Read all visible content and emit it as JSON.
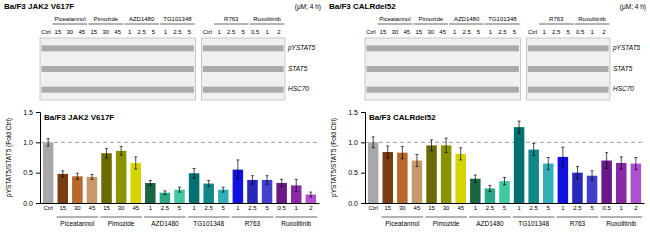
{
  "chart_data": [
    {
      "type": "blot",
      "title": "Ba/F3 JAK2 V617F",
      "annotations": [
        "(μM; 4 h)"
      ],
      "rows": [
        "pYSTAT5",
        "STAT5",
        "HSC70"
      ],
      "blocks": [
        {
          "lanes": [
            "Ctrl"
          ],
          "groups": [
            {
              "name": "Piceatannol",
              "lanes": [
                "15",
                "30",
                "45"
              ]
            },
            {
              "name": "Pimozide",
              "lanes": [
                "15",
                "30",
                "45"
              ]
            },
            {
              "name": "AZD1480",
              "lanes": [
                "1",
                "2.5",
                "5"
              ]
            },
            {
              "name": "TG101348",
              "lanes": [
                "1",
                "2.5",
                "5"
              ]
            }
          ]
        },
        {
          "lanes": [
            "Ctrl"
          ],
          "groups": [
            {
              "name": "R763",
              "lanes": [
                "1",
                "2.5",
                "5"
              ]
            },
            {
              "name": "Ruxolitinib",
              "lanes": [
                "0.5",
                "1",
                "2"
              ]
            }
          ]
        }
      ]
    },
    {
      "type": "bar",
      "title": "Ba/F3 JAK2 V617F",
      "ylabel": "pYSTAT5/STAT5 (Fold Ctrl)",
      "categories": [
        "Ctrl",
        "15",
        "30",
        "45",
        "15",
        "30",
        "45",
        "1",
        "2.5",
        "5",
        "1",
        "2.5",
        "5",
        "1",
        "2.5",
        "5",
        "0.5",
        "1",
        "2"
      ],
      "values": [
        1.0,
        0.48,
        0.44,
        0.43,
        0.82,
        0.86,
        0.66,
        0.33,
        0.17,
        0.22,
        0.49,
        0.32,
        0.22,
        0.55,
        0.38,
        0.38,
        0.33,
        0.29,
        0.14
      ],
      "errors": [
        0.06,
        0.05,
        0.05,
        0.04,
        0.08,
        0.07,
        0.1,
        0.04,
        0.03,
        0.04,
        0.08,
        0.05,
        0.04,
        0.16,
        0.07,
        0.07,
        0.06,
        0.1,
        0.04
      ],
      "colors": [
        "#a8a8a8",
        "#7a3b0e",
        "#b8682a",
        "#c8986a",
        "#6b6b00",
        "#8a9400",
        "#d4d400",
        "#1a6644",
        "#2aa888",
        "#40c8a0",
        "#007070",
        "#108888",
        "#30b0b8",
        "#1010e0",
        "#2828b8",
        "#4040cc",
        "#6a1888",
        "#8a28a8",
        "#b050d0"
      ],
      "ylim": [
        0.0,
        1.5
      ],
      "yticks": [
        {
          "value": 0.0,
          "label": "0.0"
        },
        0.5,
        {
          "value": 1.0,
          "label": "1.0"
        },
        1.5
      ],
      "reference_line": 1.0,
      "groups": [
        {
          "name": "Piceatannol",
          "from": 1,
          "to": 3
        },
        {
          "name": "Pimozide",
          "from": 4,
          "to": 6
        },
        {
          "name": "AZD1480",
          "from": 7,
          "to": 9
        },
        {
          "name": "TG101348",
          "from": 10,
          "to": 12
        },
        {
          "name": "R763",
          "from": 13,
          "to": 15
        },
        {
          "name": "Ruxolitinib",
          "from": 16,
          "to": 18
        }
      ],
      "grid": false
    },
    {
      "type": "blot",
      "title": "Ba/F3 CALRdel52",
      "annotations": [
        "(μM; 4 h)"
      ],
      "rows": [
        "pYSTAT5",
        "STAT5",
        "HSC70"
      ],
      "blocks": [
        {
          "lanes": [
            "Ctrl"
          ],
          "groups": [
            {
              "name": "Piceatannol",
              "lanes": [
                "15",
                "30",
                "45"
              ]
            },
            {
              "name": "Pimozide",
              "lanes": [
                "15",
                "30",
                "45"
              ]
            },
            {
              "name": "AZD1480",
              "lanes": [
                "1",
                "2.5",
                "5"
              ]
            },
            {
              "name": "TG101348",
              "lanes": [
                "1",
                "2.5",
                "5"
              ]
            }
          ]
        },
        {
          "lanes": [
            "Ctrl"
          ],
          "groups": [
            {
              "name": "R763",
              "lanes": [
                "1",
                "2.5",
                "5"
              ]
            },
            {
              "name": "Ruxolitinib",
              "lanes": [
                "0.5",
                "1",
                "2"
              ]
            }
          ]
        }
      ]
    },
    {
      "type": "bar",
      "title": "Ba/F3 CALRdel52",
      "ylabel": "pYSTAT5/STAT5 (Fold Ctrl)",
      "categories": [
        "Ctrl",
        "15",
        "30",
        "45",
        "15",
        "30",
        "45",
        "1",
        "2.5",
        "5",
        "1",
        "2.5",
        "5",
        "1",
        "2.5",
        "5",
        "0.5",
        "1",
        "2"
      ],
      "values": [
        1.0,
        0.84,
        0.83,
        0.7,
        0.95,
        0.95,
        0.81,
        0.4,
        0.24,
        0.36,
        1.25,
        0.88,
        0.65,
        0.76,
        0.5,
        0.45,
        0.7,
        0.66,
        0.65
      ],
      "errors": [
        0.09,
        0.1,
        0.1,
        0.1,
        0.09,
        0.12,
        0.1,
        0.06,
        0.05,
        0.06,
        0.1,
        0.1,
        0.1,
        0.16,
        0.1,
        0.08,
        0.13,
        0.1,
        0.1
      ],
      "colors": [
        "#a8a8a8",
        "#7a3b0e",
        "#b8682a",
        "#c8986a",
        "#6b6b00",
        "#8a9400",
        "#d4d400",
        "#1a6644",
        "#2aa888",
        "#40c8a0",
        "#007070",
        "#108888",
        "#30b0b8",
        "#1010e0",
        "#2828b8",
        "#4040cc",
        "#6a1888",
        "#8a28a8",
        "#b050d0"
      ],
      "ylim": [
        0.0,
        1.5
      ],
      "yticks": [
        {
          "value": 0.0,
          "label": "0.0"
        },
        0.5,
        {
          "value": 1.0,
          "label": "1.0"
        },
        1.5
      ],
      "reference_line": 1.0,
      "groups": [
        {
          "name": "Piceatannol",
          "from": 1,
          "to": 3
        },
        {
          "name": "Pimozide",
          "from": 4,
          "to": 6
        },
        {
          "name": "AZD1480",
          "from": 7,
          "to": 9
        },
        {
          "name": "TG101348",
          "from": 10,
          "to": 12
        },
        {
          "name": "R763",
          "from": 13,
          "to": 15
        },
        {
          "name": "Ruxolitinib",
          "from": 16,
          "to": 18
        }
      ],
      "grid": false
    }
  ]
}
